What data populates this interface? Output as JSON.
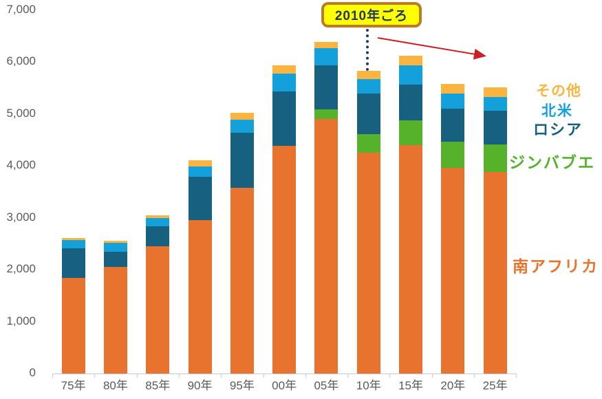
{
  "chart_data": {
    "type": "bar",
    "stacked": true,
    "title": "",
    "xlabel": "",
    "ylabel": "",
    "categories": [
      "75年",
      "80年",
      "85年",
      "90年",
      "95年",
      "00年",
      "05年",
      "10年",
      "15年",
      "20年",
      "25年"
    ],
    "series": [
      {
        "name": "南アフリカ",
        "color": "#e8732e",
        "values": [
          1840,
          2050,
          2455,
          2950,
          3570,
          4380,
          4900,
          4250,
          4395,
          3960,
          3875
        ]
      },
      {
        "name": "ジンバブエ",
        "color": "#56b22b",
        "values": [
          0,
          0,
          0,
          0,
          0,
          0,
          190,
          355,
          480,
          505,
          530
        ]
      },
      {
        "name": "ロシア",
        "color": "#17607f",
        "values": [
          570,
          300,
          380,
          835,
          1070,
          1045,
          845,
          785,
          690,
          635,
          650
        ]
      },
      {
        "name": "北米",
        "color": "#14a0da",
        "values": [
          160,
          160,
          160,
          200,
          250,
          345,
          335,
          285,
          370,
          295,
          275
        ]
      },
      {
        "name": "その他",
        "color": "#fcb440",
        "values": [
          40,
          40,
          45,
          120,
          125,
          160,
          110,
          150,
          180,
          180,
          180
        ]
      }
    ],
    "ylim": [
      0,
      7000
    ],
    "ytick_values": [
      0,
      1000,
      2000,
      3000,
      4000,
      5000,
      6000,
      7000
    ],
    "ytick_labels": [
      "0",
      "1,000",
      "2,000",
      "3,000",
      "4,000",
      "5,000",
      "6,000",
      "7,000"
    ],
    "grid": false,
    "legend_position": "right-colored-text-labels",
    "axis_text_color": "#595959",
    "axis_line_color": "#c9c9c9"
  },
  "annotation": {
    "callout_label": "2010年ごろ",
    "callout_fill": "#ffff00",
    "callout_border": "#be7b26",
    "callout_text_color": "#1f3864",
    "connector_color": "#1f3864",
    "connector_style": "dotted-vertical-to-10年-bar",
    "arrow_color": "#cb2026",
    "arrow_direction": "down-right-over-15年-to-25年-bars"
  }
}
